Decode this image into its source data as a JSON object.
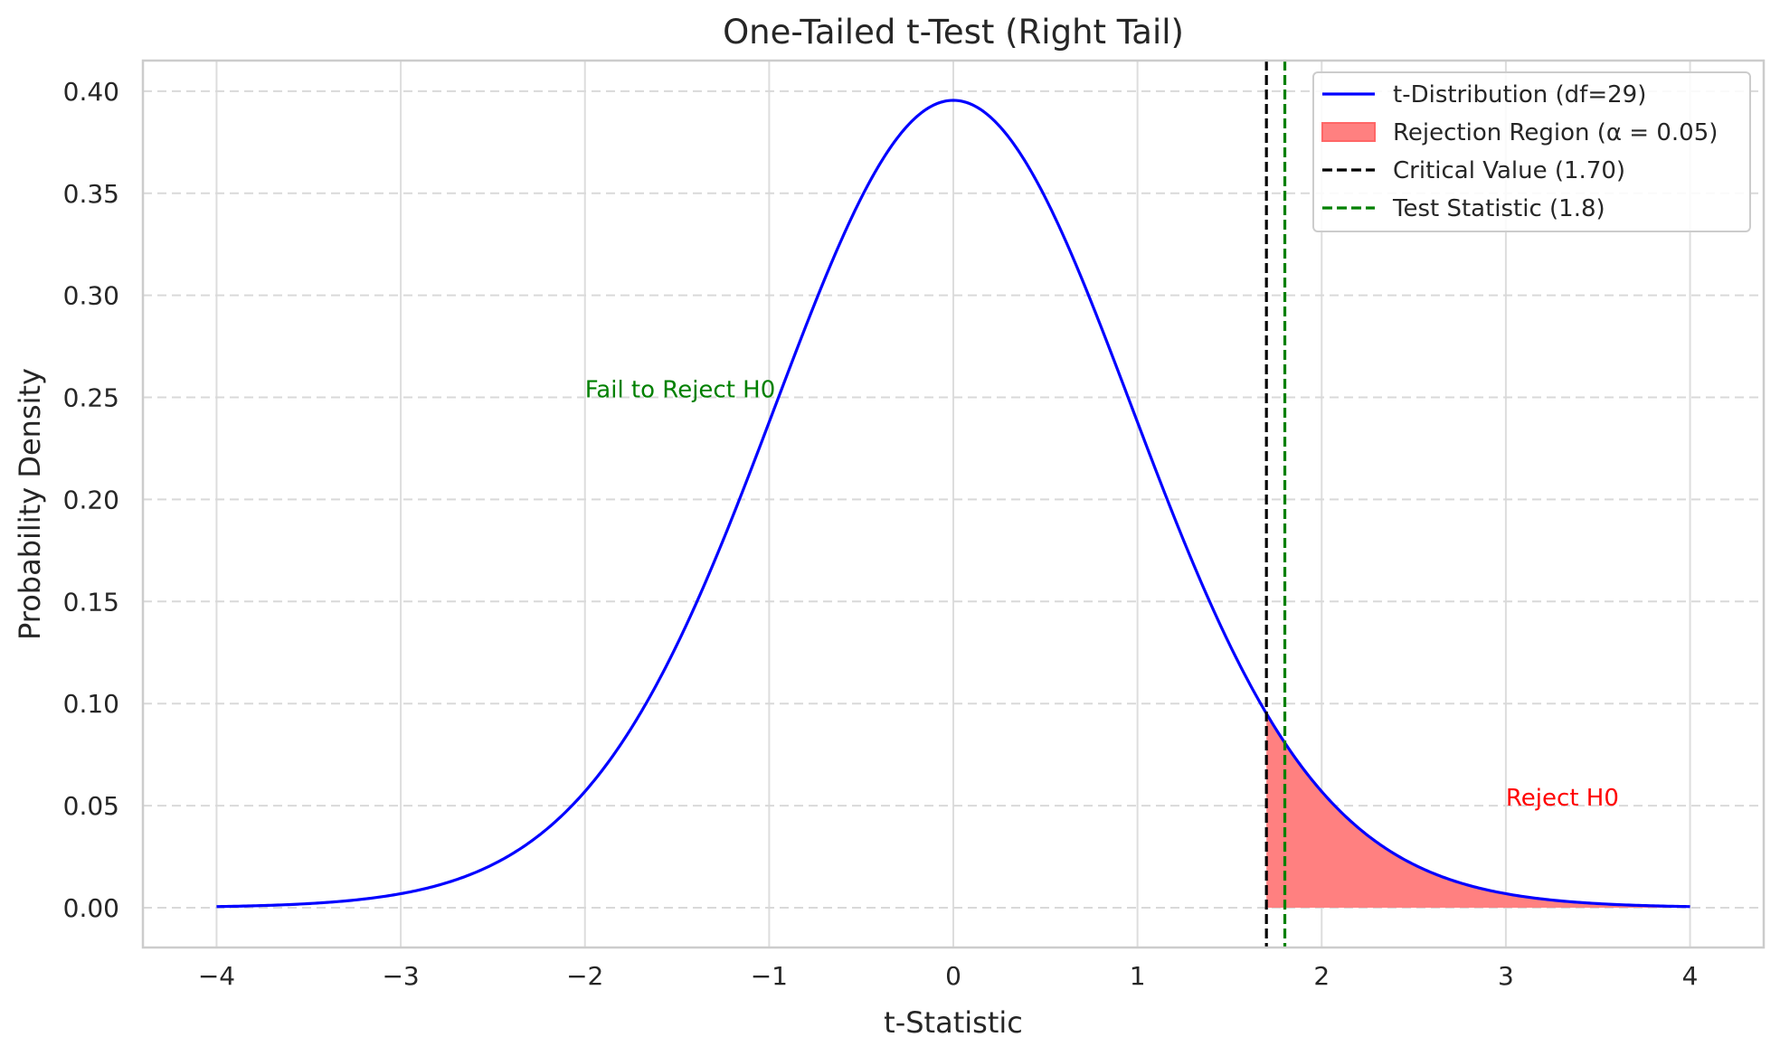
{
  "chart_data": {
    "type": "line",
    "title": "One-Tailed t-Test (Right Tail)",
    "xlabel": "t-Statistic",
    "ylabel": "Probability Density",
    "xlim": [
      -4.4,
      4.4
    ],
    "ylim": [
      -0.0195,
      0.415
    ],
    "x_ticks": [
      -4,
      -3,
      -2,
      -1,
      0,
      1,
      2,
      3,
      4
    ],
    "x_tick_labels": [
      "−4",
      "−3",
      "−2",
      "−1",
      "0",
      "1",
      "2",
      "3",
      "4"
    ],
    "y_ticks": [
      0.0,
      0.05,
      0.1,
      0.15,
      0.2,
      0.25,
      0.3,
      0.35,
      0.4
    ],
    "y_tick_labels": [
      "0.00",
      "0.05",
      "0.10",
      "0.15",
      "0.20",
      "0.25",
      "0.30",
      "0.35",
      "0.40"
    ],
    "grid": true,
    "legend_position": "top-right",
    "df": 29,
    "alpha": 0.05,
    "critical_value": 1.7,
    "test_statistic": 1.8,
    "x_range": [
      -4,
      4
    ],
    "series": [
      {
        "name": "t-Distribution (df=29)",
        "kind": "line",
        "color": "#0000ff"
      },
      {
        "name": "Rejection Region (α = 0.05)",
        "kind": "fill",
        "color": "#ff8080",
        "x_range": [
          1.7,
          4
        ]
      },
      {
        "name": "Critical Value (1.70)",
        "kind": "vline",
        "x": 1.7,
        "color": "#000000"
      },
      {
        "name": "Test Statistic (1.8)",
        "kind": "vline",
        "x": 1.8,
        "color": "#008000"
      }
    ],
    "annotations": [
      {
        "text": "Fail to Reject H0",
        "x": -2,
        "y": 0.25,
        "color": "#008000"
      },
      {
        "text": "Reject H0",
        "x": 3,
        "y": 0.05,
        "color": "#ff0000"
      }
    ]
  }
}
